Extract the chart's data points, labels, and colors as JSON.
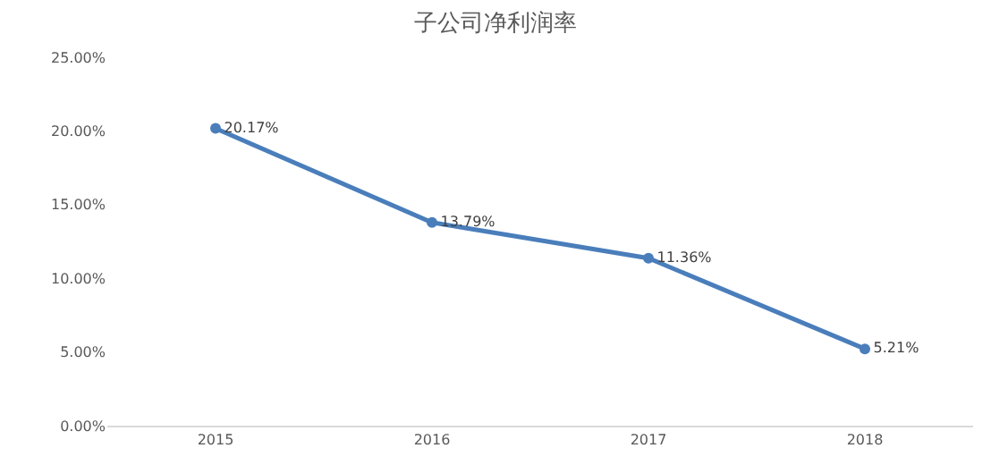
{
  "chart_data": {
    "type": "line",
    "title": "子公司净利润率",
    "categories": [
      "2015",
      "2016",
      "2017",
      "2018"
    ],
    "series": [
      {
        "color": "#4a7ebb",
        "values": [
          20.17,
          13.79,
          11.36,
          5.21
        ],
        "value_labels": [
          "20.17%",
          "13.79%",
          "11.36%",
          "5.21%"
        ]
      }
    ],
    "ylim": [
      0,
      25
    ],
    "yticks": [
      {
        "value": 0,
        "label": "0.00%"
      },
      {
        "value": 5,
        "label": "5.00%"
      },
      {
        "value": 10,
        "label": "10.00%"
      },
      {
        "value": 15,
        "label": "15.00%"
      },
      {
        "value": 20,
        "label": "20.00%"
      },
      {
        "value": 25,
        "label": "25.00%"
      }
    ],
    "grid": false,
    "marker": "circle",
    "line_style": "solid"
  }
}
